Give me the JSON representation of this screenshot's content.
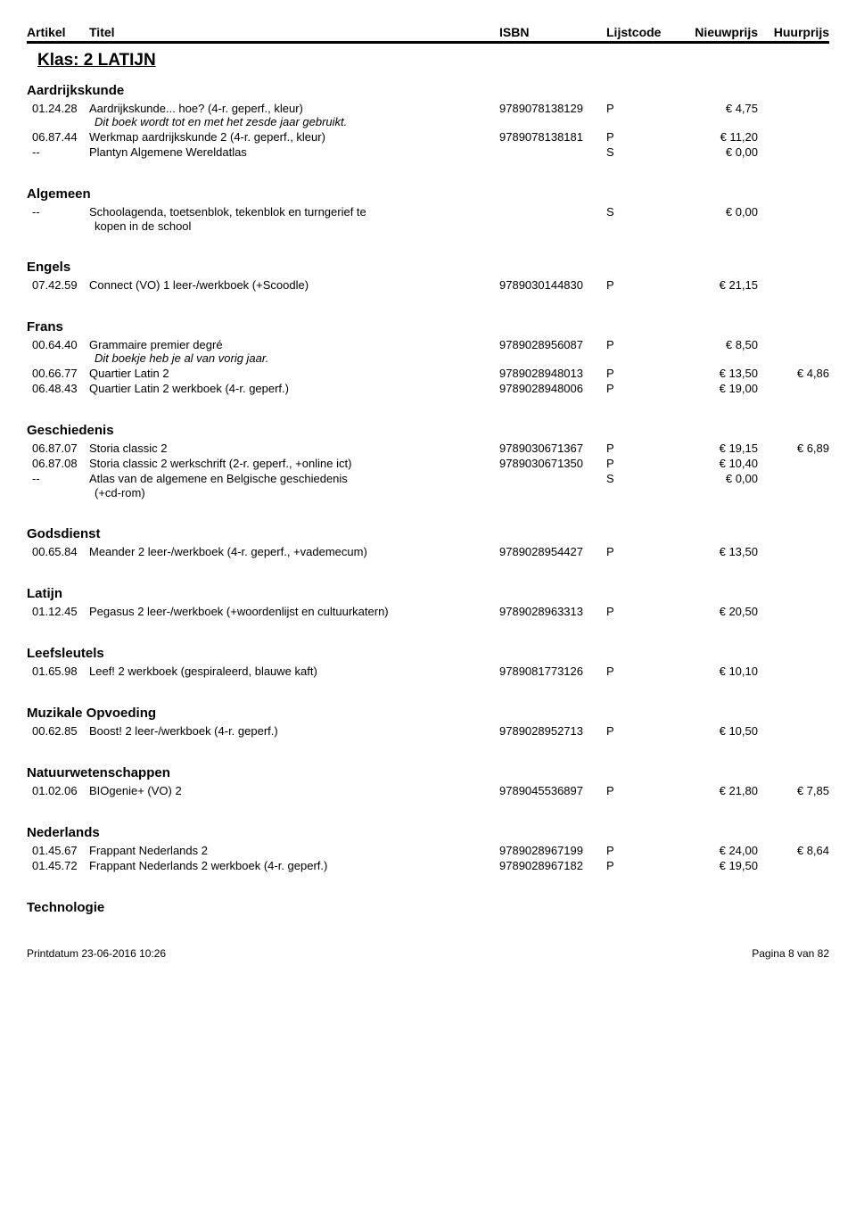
{
  "header": {
    "artikel": "Artikel",
    "titel": "Titel",
    "isbn": "ISBN",
    "lijstcode": "Lijstcode",
    "nieuwprijs": "Nieuwprijs",
    "huurprijs": "Huurprijs"
  },
  "klas": "Klas: 2 LATIJN",
  "currency": "€",
  "sections": [
    {
      "name": "Aardrijkskunde",
      "rows": [
        {
          "artikel": "01.24.28",
          "titel": "Aardrijkskunde... hoe? (4-r. geperf., kleur)",
          "isbn": "9789078138129",
          "lijst": "P",
          "nieuw": "4,75",
          "huur": "",
          "note": "Dit boek wordt tot en met het zesde jaar gebruikt."
        },
        {
          "artikel": "06.87.44",
          "titel": "Werkmap aardrijkskunde 2 (4-r. geperf., kleur)",
          "isbn": "9789078138181",
          "lijst": "P",
          "nieuw": "11,20",
          "huur": ""
        },
        {
          "artikel": "--",
          "titel": "Plantyn Algemene Wereldatlas",
          "isbn": "",
          "lijst": "S",
          "nieuw": "0,00",
          "huur": ""
        }
      ]
    },
    {
      "name": "Algemeen",
      "extraGap": true,
      "rows": [
        {
          "artikel": "--",
          "titel": "Schoolagenda, toetsenblok, tekenblok en turngerief te",
          "isbn": "",
          "lijst": "S",
          "nieuw": "0,00",
          "huur": "",
          "noteBelowTitle": "kopen in de school"
        }
      ]
    },
    {
      "name": "Engels",
      "extraGap": true,
      "rows": [
        {
          "artikel": "07.42.59",
          "titel": "Connect (VO) 1 leer-/werkboek (+Scoodle)",
          "isbn": "9789030144830",
          "lijst": "P",
          "nieuw": "21,15",
          "huur": ""
        }
      ]
    },
    {
      "name": "Frans",
      "extraGap": true,
      "rows": [
        {
          "artikel": "00.64.40",
          "titel": "Grammaire premier degré",
          "isbn": "9789028956087",
          "lijst": "P",
          "nieuw": "8,50",
          "huur": "",
          "note": "Dit boekje heb je al van vorig jaar."
        },
        {
          "artikel": "00.66.77",
          "titel": "Quartier Latin 2",
          "isbn": "9789028948013",
          "lijst": "P",
          "nieuw": "13,50",
          "huur": "4,86"
        },
        {
          "artikel": "06.48.43",
          "titel": "Quartier Latin 2 werkboek (4-r. geperf.)",
          "isbn": "9789028948006",
          "lijst": "P",
          "nieuw": "19,00",
          "huur": ""
        }
      ]
    },
    {
      "name": "Geschiedenis",
      "extraGap": true,
      "rows": [
        {
          "artikel": "06.87.07",
          "titel": "Storia classic 2",
          "isbn": "9789030671367",
          "lijst": "P",
          "nieuw": "19,15",
          "huur": "6,89"
        },
        {
          "artikel": "06.87.08",
          "titel": "Storia classic 2 werkschrift (2-r. geperf., +online ict)",
          "isbn": "9789030671350",
          "lijst": "P",
          "nieuw": "10,40",
          "huur": ""
        },
        {
          "artikel": "--",
          "titel": "Atlas van de algemene en Belgische geschiedenis",
          "isbn": "",
          "lijst": "S",
          "nieuw": "0,00",
          "huur": "",
          "noteBelowTitle": "(+cd-rom)"
        }
      ]
    },
    {
      "name": "Godsdienst",
      "extraGap": true,
      "rows": [
        {
          "artikel": "00.65.84",
          "titel": "Meander 2 leer-/werkboek (4-r. geperf., +vademecum)",
          "isbn": "9789028954427",
          "lijst": "P",
          "nieuw": "13,50",
          "huur": ""
        }
      ]
    },
    {
      "name": "Latijn",
      "extraGap": true,
      "rows": [
        {
          "artikel": "01.12.45",
          "titel": "Pegasus 2 leer-/werkboek (+woordenlijst en cultuurkatern)",
          "isbn": "9789028963313",
          "lijst": "P",
          "nieuw": "20,50",
          "huur": ""
        }
      ]
    },
    {
      "name": "Leefsleutels",
      "extraGap": true,
      "rows": [
        {
          "artikel": "01.65.98",
          "titel": "Leef! 2 werkboek (gespiraleerd, blauwe kaft)",
          "isbn": "9789081773126",
          "lijst": "P",
          "nieuw": "10,10",
          "huur": ""
        }
      ]
    },
    {
      "name": "Muzikale Opvoeding",
      "extraGap": true,
      "rows": [
        {
          "artikel": "00.62.85",
          "titel": "Boost! 2 leer-/werkboek (4-r. geperf.)",
          "isbn": "9789028952713",
          "lijst": "P",
          "nieuw": "10,50",
          "huur": ""
        }
      ]
    },
    {
      "name": "Natuurwetenschappen",
      "extraGap": true,
      "rows": [
        {
          "artikel": "01.02.06",
          "titel": "BIOgenie+ (VO) 2",
          "isbn": "9789045536897",
          "lijst": "P",
          "nieuw": "21,80",
          "huur": "7,85"
        }
      ]
    },
    {
      "name": "Nederlands",
      "extraGap": true,
      "rows": [
        {
          "artikel": "01.45.67",
          "titel": "Frappant Nederlands 2",
          "isbn": "9789028967199",
          "lijst": "P",
          "nieuw": "24,00",
          "huur": "8,64"
        },
        {
          "artikel": "01.45.72",
          "titel": "Frappant Nederlands 2 werkboek (4-r. geperf.)",
          "isbn": "9789028967182",
          "lijst": "P",
          "nieuw": "19,50",
          "huur": ""
        }
      ]
    },
    {
      "name": "Technologie",
      "extraGap": true,
      "rows": []
    }
  ],
  "footer": {
    "left": "Printdatum 23-06-2016 10:26",
    "right": "Pagina 8 van 82"
  }
}
